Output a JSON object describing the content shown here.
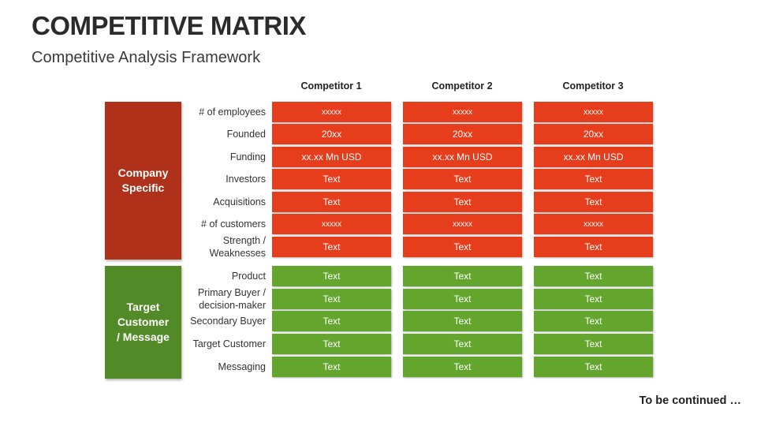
{
  "title": "COMPETITIVE MATRIX",
  "subtitle": "Competitive Analysis Framework",
  "competitors": [
    "Competitor 1",
    "Competitor 2",
    "Competitor 3"
  ],
  "sections": [
    {
      "label": "Company\nSpecific",
      "color": "#b0311a",
      "cell_color": "#e63e1c"
    },
    {
      "label": "Target\nCustomer\n/ Message",
      "color": "#538a28",
      "cell_color": "#63a52d"
    }
  ],
  "rows": [
    {
      "label": "# of employees",
      "section": 0,
      "values": [
        "xxxxx",
        "xxxxx",
        "xxxxx"
      ]
    },
    {
      "label": "Founded",
      "section": 0,
      "values": [
        "20xx",
        "20xx",
        "20xx"
      ]
    },
    {
      "label": "Funding",
      "section": 0,
      "values": [
        "xx.xx Mn USD",
        "xx.xx Mn USD",
        "xx.xx Mn USD"
      ]
    },
    {
      "label": "Investors",
      "section": 0,
      "values": [
        "Text",
        "Text",
        "Text"
      ]
    },
    {
      "label": "Acquisitions",
      "section": 0,
      "values": [
        "Text",
        "Text",
        "Text"
      ]
    },
    {
      "label": "# of customers",
      "section": 0,
      "values": [
        "xxxxx",
        "xxxxx",
        "xxxxx"
      ]
    },
    {
      "label": "Strength /\nWeaknesses",
      "section": 0,
      "values": [
        "Text",
        "Text",
        "Text"
      ]
    },
    {
      "label": "Product",
      "section": 1,
      "values": [
        "Text",
        "Text",
        "Text"
      ]
    },
    {
      "label": "Primary Buyer /\ndecision-maker",
      "section": 1,
      "values": [
        "Text",
        "Text",
        "Text"
      ]
    },
    {
      "label": "Secondary Buyer",
      "section": 1,
      "values": [
        "Text",
        "Text",
        "Text"
      ]
    },
    {
      "label": "Target Customer",
      "section": 1,
      "values": [
        "Text",
        "Text",
        "Text"
      ]
    },
    {
      "label": "Messaging",
      "section": 1,
      "values": [
        "Text",
        "Text",
        "Text"
      ]
    }
  ],
  "footer": "To be continued …"
}
